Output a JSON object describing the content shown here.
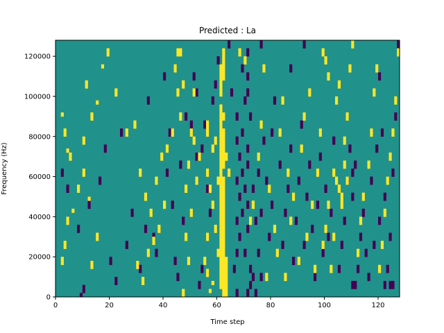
{
  "chart_data": {
    "type": "heatmap",
    "title": "Predicted : La",
    "xlabel": "Time step",
    "ylabel": "Frequency (Hz)",
    "xlim": [
      0,
      128
    ],
    "ylim": [
      0,
      128000
    ],
    "x_ticks": [
      0,
      20,
      40,
      60,
      80,
      100,
      120
    ],
    "y_ticks": [
      0,
      20000,
      40000,
      60000,
      80000,
      100000,
      120000
    ],
    "x_tick_labels": [
      "0",
      "20",
      "40",
      "60",
      "80",
      "100",
      "120"
    ],
    "y_tick_labels": [
      "0",
      "20000",
      "40000",
      "60000",
      "80000",
      "100000",
      "120000"
    ],
    "time_steps": 128,
    "frequency_bins": 64,
    "bin_height_hz": 2000,
    "colormap": [
      "#440154",
      "#21918c",
      "#fde725"
    ],
    "value_levels": [
      -1,
      0,
      1
    ],
    "background_value": 0,
    "cells_high": [
      [
        62,
        0,
        2
      ],
      [
        63,
        0,
        2
      ],
      [
        61,
        2,
        4
      ],
      [
        62,
        2,
        4
      ],
      [
        63,
        2,
        4
      ],
      [
        61,
        4,
        6
      ],
      [
        62,
        4,
        6
      ],
      [
        63,
        4,
        6
      ],
      [
        61,
        6,
        8
      ],
      [
        62,
        6,
        8
      ],
      [
        63,
        6,
        8
      ],
      [
        61,
        8,
        10
      ],
      [
        62,
        8,
        10
      ],
      [
        63,
        8,
        10
      ],
      [
        60,
        10,
        12
      ],
      [
        61,
        10,
        12
      ],
      [
        62,
        10,
        12
      ],
      [
        61,
        12,
        14
      ],
      [
        62,
        12,
        14
      ],
      [
        61,
        14,
        16
      ],
      [
        62,
        14,
        16
      ],
      [
        61,
        16,
        18
      ],
      [
        62,
        16,
        18
      ],
      [
        61,
        18,
        20
      ],
      [
        62,
        18,
        20
      ],
      [
        61,
        20,
        22
      ],
      [
        62,
        20,
        22
      ],
      [
        61,
        22,
        24
      ],
      [
        62,
        22,
        24
      ],
      [
        61,
        24,
        26
      ],
      [
        62,
        24,
        26
      ],
      [
        61,
        26,
        28
      ],
      [
        62,
        26,
        28
      ],
      [
        61,
        28,
        30
      ],
      [
        62,
        28,
        30
      ],
      [
        61,
        30,
        32
      ],
      [
        61,
        32,
        34
      ],
      [
        62,
        32,
        34
      ],
      [
        61,
        34,
        36
      ],
      [
        62,
        34,
        36
      ],
      [
        61,
        36,
        38
      ],
      [
        62,
        36,
        38
      ],
      [
        61,
        38,
        40
      ],
      [
        62,
        38,
        40
      ],
      [
        61,
        40,
        42
      ],
      [
        62,
        40,
        42
      ],
      [
        61,
        42,
        44
      ],
      [
        61,
        44,
        46
      ],
      [
        62,
        44,
        46
      ],
      [
        61,
        46,
        48
      ],
      [
        61,
        50,
        52
      ],
      [
        61,
        52,
        54
      ],
      [
        61,
        54,
        56
      ],
      [
        62,
        54,
        56
      ],
      [
        61,
        56,
        58
      ],
      [
        62,
        56,
        58
      ],
      [
        62,
        58,
        60
      ],
      [
        62,
        60,
        62
      ],
      [
        57,
        1,
        2
      ],
      [
        58,
        3,
        4
      ],
      [
        56,
        5,
        7
      ],
      [
        55,
        8,
        10
      ],
      [
        56,
        14,
        16
      ],
      [
        59,
        16,
        18
      ],
      [
        58,
        22,
        24
      ],
      [
        57,
        26,
        28
      ],
      [
        56,
        30,
        32
      ],
      [
        60,
        28,
        30
      ],
      [
        58,
        36,
        38
      ],
      [
        56,
        40,
        44
      ],
      [
        59,
        38,
        40
      ],
      [
        63,
        34,
        36
      ],
      [
        64,
        30,
        32
      ],
      [
        2,
        8,
        10
      ],
      [
        3,
        12,
        14
      ],
      [
        4,
        18,
        20
      ],
      [
        6,
        21,
        22
      ],
      [
        8,
        26,
        28
      ],
      [
        10,
        30,
        32
      ],
      [
        5,
        34,
        36
      ],
      [
        3,
        40,
        42
      ],
      [
        2,
        45,
        46
      ],
      [
        4,
        36,
        37
      ],
      [
        13,
        7,
        9
      ],
      [
        15,
        14,
        16
      ],
      [
        12,
        24,
        25
      ],
      [
        10,
        38,
        40
      ],
      [
        13,
        44,
        46
      ],
      [
        11,
        52,
        54
      ],
      [
        15,
        48,
        49
      ],
      [
        17,
        57,
        58
      ],
      [
        19,
        60,
        62
      ],
      [
        22,
        50,
        52
      ],
      [
        26,
        40,
        42
      ],
      [
        29,
        42,
        44
      ],
      [
        31,
        30,
        32
      ],
      [
        33,
        24,
        26
      ],
      [
        35,
        20,
        22
      ],
      [
        37,
        28,
        30
      ],
      [
        39,
        34,
        36
      ],
      [
        40,
        22,
        24
      ],
      [
        30,
        7,
        9
      ],
      [
        32,
        3,
        5
      ],
      [
        34,
        10,
        12
      ],
      [
        36,
        13,
        15
      ],
      [
        38,
        16,
        18
      ],
      [
        41,
        36,
        38
      ],
      [
        43,
        40,
        42
      ],
      [
        45,
        50,
        52
      ],
      [
        46,
        60,
        62
      ],
      [
        48,
        14,
        16
      ],
      [
        49,
        8,
        10
      ],
      [
        50,
        20,
        22
      ],
      [
        48,
        26,
        28
      ],
      [
        49,
        32,
        34
      ],
      [
        50,
        40,
        42
      ],
      [
        51,
        38,
        40
      ],
      [
        52,
        28,
        30
      ],
      [
        53,
        34,
        36
      ],
      [
        46,
        44,
        46
      ],
      [
        47,
        52,
        54
      ],
      [
        44,
        56,
        58
      ],
      [
        45,
        60,
        62
      ],
      [
        47,
        0,
        2
      ],
      [
        51,
        50,
        52
      ],
      [
        68,
        60,
        62
      ],
      [
        70,
        58,
        60
      ],
      [
        72,
        18,
        20
      ],
      [
        73,
        22,
        24
      ],
      [
        75,
        34,
        36
      ],
      [
        76,
        42,
        44
      ],
      [
        77,
        56,
        58
      ],
      [
        78,
        4,
        6
      ],
      [
        79,
        26,
        28
      ],
      [
        81,
        16,
        18
      ],
      [
        82,
        10,
        12
      ],
      [
        83,
        40,
        42
      ],
      [
        84,
        48,
        50
      ],
      [
        85,
        4,
        6
      ],
      [
        86,
        30,
        32
      ],
      [
        87,
        18,
        20
      ],
      [
        88,
        24,
        26
      ],
      [
        90,
        8,
        10
      ],
      [
        91,
        36,
        38
      ],
      [
        92,
        44,
        46
      ],
      [
        93,
        14,
        16
      ],
      [
        94,
        50,
        52
      ],
      [
        95,
        22,
        24
      ],
      [
        96,
        6,
        8
      ],
      [
        97,
        30,
        32
      ],
      [
        98,
        40,
        42
      ],
      [
        99,
        12,
        14
      ],
      [
        103,
        30,
        32
      ],
      [
        104,
        28,
        30
      ],
      [
        105,
        26,
        28
      ],
      [
        106,
        24,
        26
      ],
      [
        106,
        22,
        24
      ],
      [
        107,
        32,
        34
      ],
      [
        108,
        28,
        30
      ],
      [
        102,
        6,
        8
      ],
      [
        103,
        14,
        16
      ],
      [
        104,
        48,
        50
      ],
      [
        105,
        52,
        54
      ],
      [
        107,
        38,
        40
      ],
      [
        108,
        44,
        46
      ],
      [
        109,
        56,
        58
      ],
      [
        110,
        62,
        64
      ],
      [
        112,
        10,
        12
      ],
      [
        113,
        18,
        20
      ],
      [
        114,
        24,
        26
      ],
      [
        116,
        32,
        34
      ],
      [
        117,
        40,
        42
      ],
      [
        118,
        50,
        52
      ],
      [
        119,
        56,
        58
      ],
      [
        120,
        6,
        8
      ],
      [
        121,
        12,
        14
      ],
      [
        122,
        20,
        22
      ],
      [
        123,
        28,
        30
      ],
      [
        124,
        34,
        36
      ],
      [
        125,
        40,
        42
      ],
      [
        126,
        48,
        50
      ],
      [
        127,
        60,
        62
      ],
      [
        99,
        60,
        62
      ],
      [
        100,
        58,
        60
      ],
      [
        101,
        54,
        56
      ],
      [
        100,
        16,
        18
      ],
      [
        101,
        22,
        24
      ]
    ],
    "cells_low": [
      [
        10,
        1,
        3
      ],
      [
        9,
        0,
        1
      ],
      [
        20,
        8,
        10
      ],
      [
        22,
        3,
        5
      ],
      [
        26,
        12,
        14
      ],
      [
        31,
        6,
        8
      ],
      [
        33,
        16,
        18
      ],
      [
        37,
        10,
        12
      ],
      [
        41,
        30,
        32
      ],
      [
        43,
        22,
        24
      ],
      [
        45,
        4,
        6
      ],
      [
        47,
        18,
        20
      ],
      [
        50,
        42,
        44
      ],
      [
        52,
        34,
        36
      ],
      [
        56,
        26,
        28
      ],
      [
        58,
        48,
        50
      ],
      [
        60,
        58,
        60
      ],
      [
        66,
        6,
        8
      ],
      [
        67,
        0,
        2
      ],
      [
        67,
        10,
        12
      ],
      [
        67,
        18,
        20
      ],
      [
        67,
        28,
        30
      ],
      [
        67,
        38,
        40
      ],
      [
        67,
        44,
        46
      ],
      [
        68,
        14,
        16
      ],
      [
        68,
        24,
        26
      ],
      [
        68,
        34,
        36
      ],
      [
        69,
        20,
        22
      ],
      [
        69,
        30,
        32
      ],
      [
        69,
        40,
        42
      ],
      [
        70,
        10,
        12
      ],
      [
        70,
        26,
        28
      ],
      [
        70,
        48,
        50
      ],
      [
        71,
        16,
        18
      ],
      [
        71,
        22,
        24
      ],
      [
        71,
        32,
        34
      ],
      [
        71,
        36,
        38
      ],
      [
        71,
        50,
        52
      ],
      [
        71,
        54,
        56
      ],
      [
        72,
        6,
        8
      ],
      [
        72,
        44,
        46
      ],
      [
        73,
        26,
        28
      ],
      [
        74,
        18,
        20
      ],
      [
        75,
        10,
        12
      ],
      [
        75,
        30,
        32
      ],
      [
        76,
        4,
        6
      ],
      [
        76,
        20,
        22
      ],
      [
        77,
        38,
        40
      ],
      [
        78,
        28,
        30
      ],
      [
        79,
        14,
        16
      ],
      [
        80,
        22,
        24
      ],
      [
        80,
        40,
        42
      ],
      [
        81,
        48,
        50
      ],
      [
        83,
        32,
        34
      ],
      [
        84,
        12,
        14
      ],
      [
        85,
        20,
        22
      ],
      [
        86,
        26,
        28
      ],
      [
        87,
        36,
        38
      ],
      [
        88,
        8,
        10
      ],
      [
        89,
        18,
        20
      ],
      [
        90,
        28,
        30
      ],
      [
        91,
        42,
        44
      ],
      [
        92,
        12,
        14
      ],
      [
        93,
        24,
        26
      ],
      [
        94,
        32,
        34
      ],
      [
        95,
        16,
        18
      ],
      [
        96,
        4,
        6
      ],
      [
        97,
        22,
        24
      ],
      [
        98,
        34,
        36
      ],
      [
        99,
        10,
        12
      ],
      [
        100,
        26,
        28
      ],
      [
        101,
        14,
        16
      ],
      [
        102,
        20,
        22
      ],
      [
        103,
        38,
        40
      ],
      [
        105,
        6,
        8
      ],
      [
        106,
        12,
        14
      ],
      [
        107,
        18,
        20
      ],
      [
        108,
        28,
        30
      ],
      [
        109,
        36,
        38
      ],
      [
        110,
        24,
        26
      ],
      [
        110,
        30,
        32
      ],
      [
        111,
        32,
        34
      ],
      [
        112,
        6,
        8
      ],
      [
        113,
        14,
        16
      ],
      [
        114,
        20,
        22
      ],
      [
        115,
        10,
        12
      ],
      [
        116,
        4,
        6
      ],
      [
        117,
        28,
        30
      ],
      [
        118,
        12,
        14
      ],
      [
        119,
        36,
        38
      ],
      [
        120,
        18,
        20
      ],
      [
        121,
        40,
        42
      ],
      [
        122,
        24,
        26
      ],
      [
        123,
        6,
        8
      ],
      [
        124,
        14,
        16
      ],
      [
        125,
        30,
        32
      ],
      [
        126,
        44,
        46
      ],
      [
        127,
        62,
        64
      ],
      [
        124,
        2,
        4
      ],
      [
        125,
        2,
        4
      ],
      [
        122,
        2,
        4
      ],
      [
        110,
        2,
        4
      ],
      [
        111,
        2,
        4
      ],
      [
        71,
        0,
        2
      ],
      [
        72,
        2,
        4
      ],
      [
        73,
        4,
        6
      ],
      [
        74,
        0,
        2
      ],
      [
        53,
        2,
        4
      ],
      [
        54,
        6,
        8
      ],
      [
        2,
        30,
        32
      ],
      [
        4,
        26,
        28
      ],
      [
        8,
        16,
        18
      ],
      [
        12,
        22,
        24
      ],
      [
        16,
        28,
        30
      ],
      [
        18,
        36,
        38
      ],
      [
        24,
        40,
        42
      ],
      [
        28,
        20,
        22
      ],
      [
        34,
        48,
        50
      ],
      [
        36,
        14,
        16
      ],
      [
        40,
        54,
        56
      ],
      [
        42,
        40,
        42
      ],
      [
        44,
        8,
        10
      ],
      [
        46,
        32,
        34
      ],
      [
        48,
        44,
        46
      ],
      [
        51,
        54,
        56
      ],
      [
        52,
        50,
        52
      ],
      [
        54,
        36,
        38
      ],
      [
        55,
        42,
        44
      ],
      [
        57,
        20,
        22
      ],
      [
        59,
        52,
        54
      ],
      [
        64,
        62,
        64
      ],
      [
        65,
        50,
        52
      ],
      [
        69,
        56,
        58
      ],
      [
        71,
        60,
        62
      ],
      [
        76,
        62,
        64
      ],
      [
        87,
        56,
        58
      ],
      [
        92,
        62,
        64
      ],
      [
        120,
        54,
        56
      ]
    ]
  }
}
